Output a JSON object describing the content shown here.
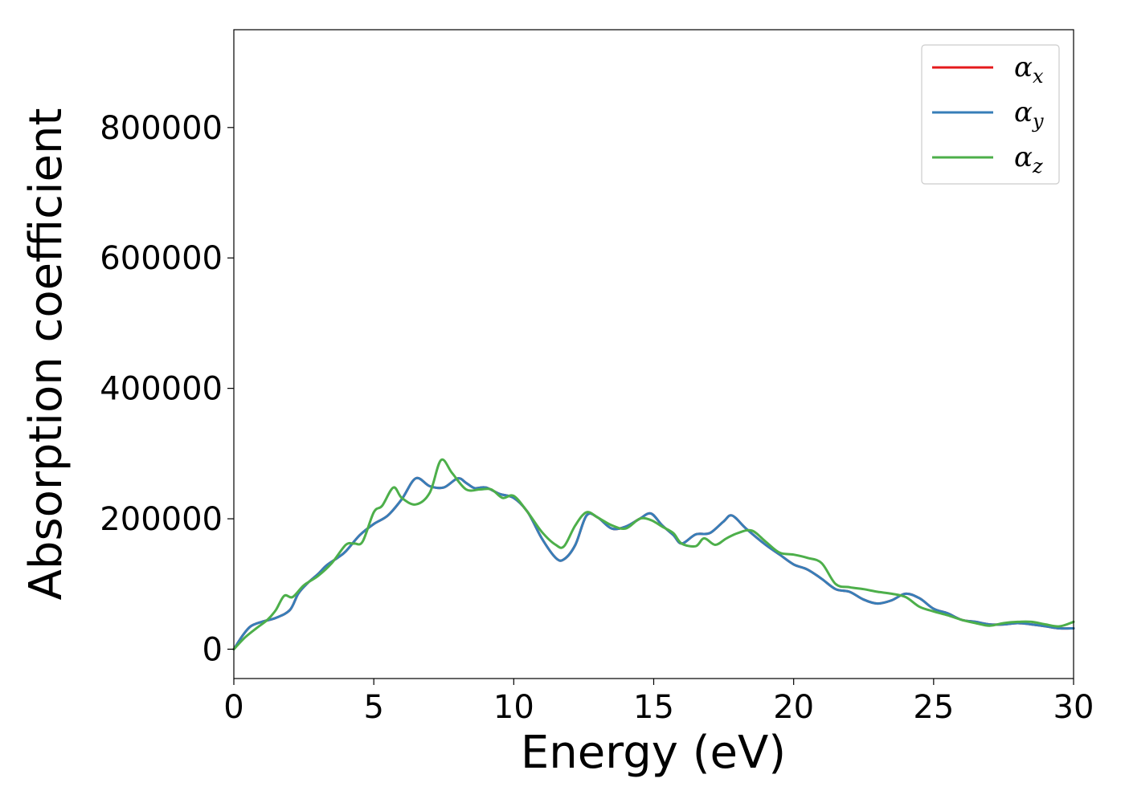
{
  "chart_data": {
    "type": "line",
    "xlabel": "Energy (eV)",
    "ylabel": "Absorption coefficient",
    "xlim": [
      0,
      30
    ],
    "ylim": [
      -45000,
      950000
    ],
    "xticks": [
      0,
      5,
      10,
      15,
      20,
      25,
      30
    ],
    "yticks": [
      0,
      200000,
      400000,
      600000,
      800000
    ],
    "grid": false,
    "legend_position": "top-right",
    "series": [
      {
        "name": "αx",
        "legend_base": "α",
        "legend_sub": "x",
        "color": "#e41a1c",
        "x": [
          0,
          0.3,
          0.6,
          1.0,
          1.5,
          2.0,
          2.3,
          2.6,
          3.0,
          3.3,
          3.7,
          4.0,
          4.5,
          5.0,
          5.5,
          6.0,
          6.5,
          7.0,
          7.5,
          8.0,
          8.3,
          8.6,
          9.0,
          9.5,
          10.0,
          10.5,
          11.0,
          11.5,
          11.8,
          12.2,
          12.6,
          13.0,
          13.5,
          14.0,
          14.5,
          14.9,
          15.3,
          15.7,
          16.0,
          16.5,
          17.0,
          17.5,
          17.8,
          18.3,
          19.0,
          19.5,
          20.0,
          20.5,
          21.0,
          21.5,
          22.0,
          22.5,
          23.0,
          23.5,
          24.0,
          24.5,
          25.0,
          25.5,
          26.0,
          26.5,
          27.0,
          27.5,
          28.0,
          28.5,
          29.0,
          29.5,
          30.0
        ],
        "y": [
          0,
          20000,
          35000,
          42000,
          48000,
          60000,
          85000,
          100000,
          115000,
          128000,
          140000,
          150000,
          175000,
          192000,
          205000,
          230000,
          262000,
          250000,
          248000,
          262000,
          255000,
          247000,
          248000,
          238000,
          232000,
          210000,
          170000,
          140000,
          138000,
          160000,
          205000,
          202000,
          185000,
          188000,
          200000,
          208000,
          190000,
          175000,
          162000,
          176000,
          178000,
          196000,
          205000,
          185000,
          160000,
          145000,
          130000,
          122000,
          108000,
          92000,
          88000,
          76000,
          70000,
          75000,
          85000,
          78000,
          62000,
          55000,
          45000,
          42000,
          38000,
          38000,
          40000,
          38000,
          35000,
          32000,
          32000
        ]
      },
      {
        "name": "αy",
        "legend_base": "α",
        "legend_sub": "y",
        "color": "#377eb8",
        "x": [
          0,
          0.3,
          0.6,
          1.0,
          1.5,
          2.0,
          2.3,
          2.6,
          3.0,
          3.3,
          3.7,
          4.0,
          4.5,
          5.0,
          5.5,
          6.0,
          6.5,
          7.0,
          7.5,
          8.0,
          8.3,
          8.6,
          9.0,
          9.5,
          10.0,
          10.5,
          11.0,
          11.5,
          11.8,
          12.2,
          12.6,
          13.0,
          13.5,
          14.0,
          14.5,
          14.9,
          15.3,
          15.7,
          16.0,
          16.5,
          17.0,
          17.5,
          17.8,
          18.3,
          19.0,
          19.5,
          20.0,
          20.5,
          21.0,
          21.5,
          22.0,
          22.5,
          23.0,
          23.5,
          24.0,
          24.5,
          25.0,
          25.5,
          26.0,
          26.5,
          27.0,
          27.5,
          28.0,
          28.5,
          29.0,
          29.5,
          30.0
        ],
        "y": [
          0,
          20000,
          35000,
          42000,
          48000,
          60000,
          85000,
          100000,
          115000,
          128000,
          140000,
          150000,
          175000,
          192000,
          205000,
          230000,
          262000,
          250000,
          248000,
          262000,
          255000,
          247000,
          248000,
          238000,
          232000,
          210000,
          170000,
          140000,
          138000,
          160000,
          205000,
          202000,
          185000,
          188000,
          200000,
          208000,
          190000,
          175000,
          162000,
          176000,
          178000,
          196000,
          205000,
          185000,
          160000,
          145000,
          130000,
          122000,
          108000,
          92000,
          88000,
          76000,
          70000,
          75000,
          85000,
          78000,
          62000,
          55000,
          45000,
          42000,
          38000,
          38000,
          40000,
          38000,
          35000,
          32000,
          32000
        ]
      },
      {
        "name": "αz",
        "legend_base": "α",
        "legend_sub": "z",
        "color": "#4daf4a",
        "x": [
          0,
          0.4,
          0.8,
          1.2,
          1.5,
          1.8,
          2.1,
          2.5,
          3.0,
          3.5,
          4.0,
          4.3,
          4.6,
          5.0,
          5.3,
          5.7,
          6.0,
          6.5,
          7.0,
          7.4,
          7.8,
          8.3,
          8.8,
          9.2,
          9.6,
          10.0,
          10.5,
          11.0,
          11.5,
          11.8,
          12.2,
          12.6,
          13.0,
          13.5,
          14.0,
          14.5,
          14.9,
          15.3,
          15.7,
          16.0,
          16.5,
          16.8,
          17.2,
          17.6,
          18.0,
          18.5,
          19.0,
          19.5,
          20.0,
          20.5,
          21.0,
          21.5,
          22.0,
          22.5,
          23.0,
          23.5,
          24.0,
          24.5,
          25.0,
          25.5,
          26.0,
          26.5,
          27.0,
          27.5,
          28.0,
          28.5,
          29.0,
          29.5,
          30.0
        ],
        "y": [
          0,
          18000,
          32000,
          45000,
          60000,
          82000,
          80000,
          98000,
          112000,
          132000,
          160000,
          162000,
          165000,
          210000,
          220000,
          248000,
          232000,
          222000,
          240000,
          290000,
          270000,
          245000,
          245000,
          245000,
          232000,
          235000,
          210000,
          180000,
          160000,
          158000,
          190000,
          210000,
          202000,
          190000,
          185000,
          200000,
          198000,
          188000,
          178000,
          162000,
          158000,
          170000,
          160000,
          170000,
          178000,
          182000,
          165000,
          148000,
          145000,
          140000,
          132000,
          100000,
          95000,
          92000,
          88000,
          85000,
          80000,
          65000,
          58000,
          52000,
          45000,
          40000,
          36000,
          40000,
          42000,
          42000,
          38000,
          35000,
          42000
        ]
      }
    ]
  }
}
